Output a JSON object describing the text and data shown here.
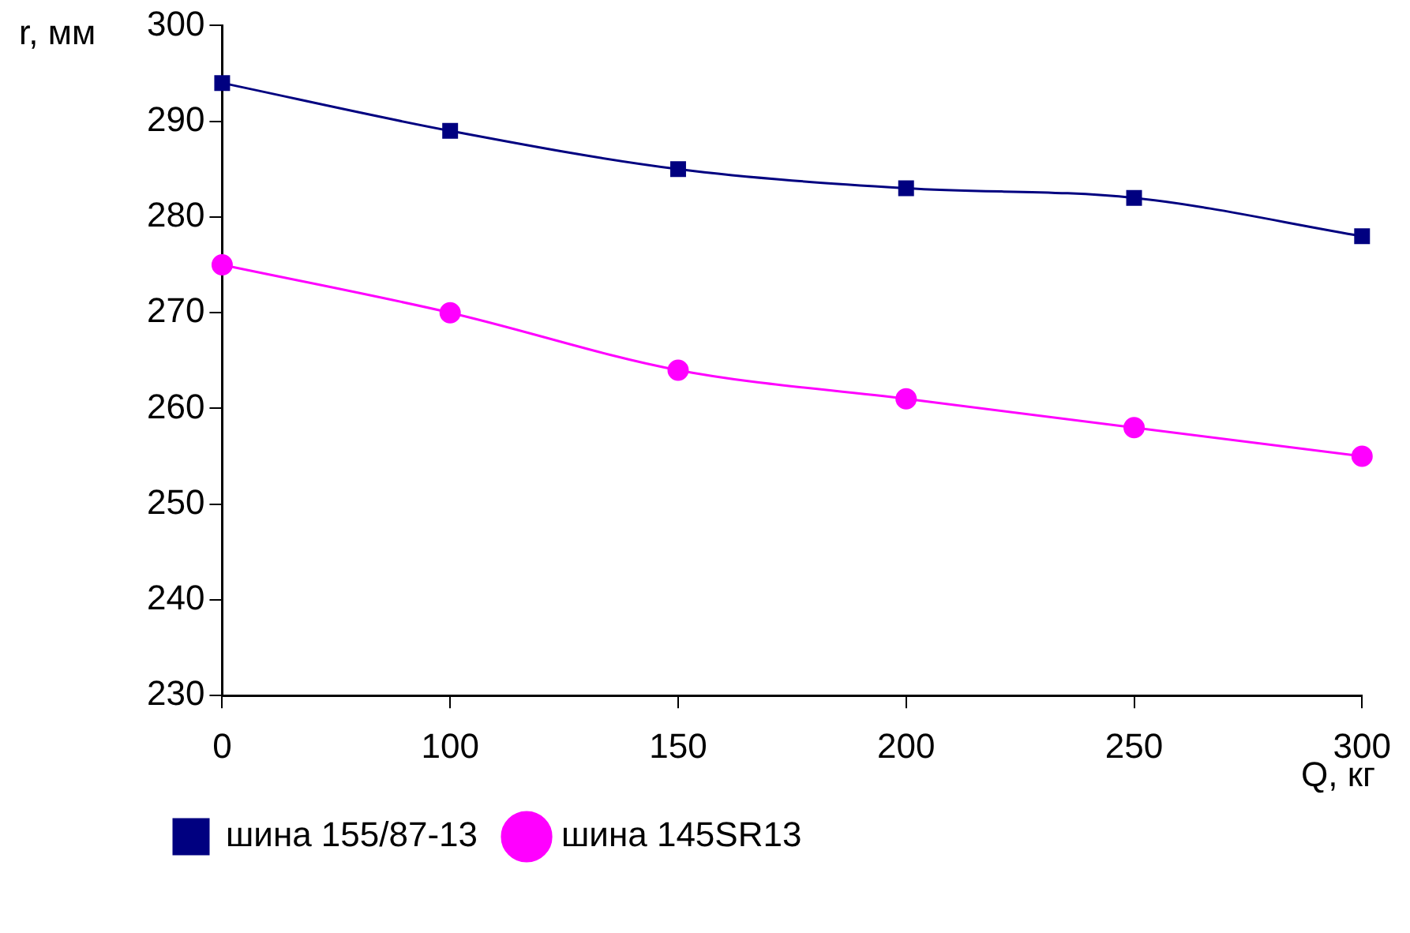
{
  "chart_data": {
    "type": "line",
    "xlabel": "Q, кг",
    "ylabel": "r, мм",
    "categories": [
      "0",
      "100",
      "150",
      "200",
      "250",
      "300"
    ],
    "series": [
      {
        "name": "шина 155/87-13",
        "color": "#000080",
        "marker": "square",
        "values": [
          294,
          289,
          285,
          283,
          282,
          278
        ]
      },
      {
        "name": "шина 145SR13",
        "color": "#ff00ff",
        "marker": "circle",
        "values": [
          275,
          270,
          264,
          261,
          258,
          255
        ]
      }
    ],
    "ylim": [
      230,
      300
    ],
    "yticks": [
      230,
      240,
      250,
      260,
      270,
      280,
      290,
      300
    ],
    "grid": false,
    "legend": "bottom"
  }
}
